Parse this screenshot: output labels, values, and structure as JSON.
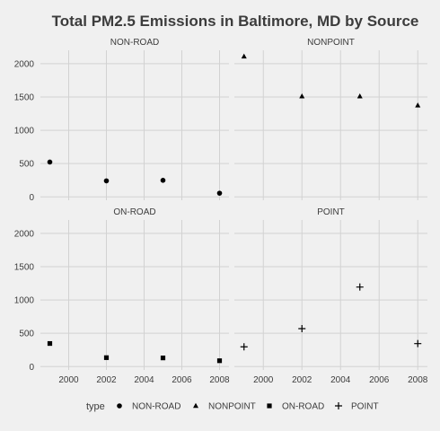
{
  "chart_data": {
    "type": "scatter",
    "title": "Total PM2.5 Emissions in Baltimore, MD by Source",
    "xlabel": "",
    "ylabel": "",
    "x": [
      1999,
      2002,
      2005,
      2008
    ],
    "xlim": [
      1998.5,
      2008.5
    ],
    "ylim": [
      -50,
      2200
    ],
    "x_ticks": [
      "2000",
      "2002",
      "2004",
      "2006",
      "2008"
    ],
    "y_ticks": [
      "0",
      "500",
      "1000",
      "1500",
      "2000"
    ],
    "grid": true,
    "facets": [
      {
        "name": "NON-ROAD",
        "shape": "circle",
        "values": [
          522.94,
          240.85,
          248.93,
          55.82
        ]
      },
      {
        "name": "NONPOINT",
        "shape": "triangle",
        "values": [
          2107.63,
          1509.5,
          1509.5,
          1373.21
        ]
      },
      {
        "name": "ON-ROAD",
        "shape": "square",
        "values": [
          346.82,
          134.31,
          130.43,
          88.28
        ]
      },
      {
        "name": "POINT",
        "shape": "plus",
        "values": [
          296.8,
          569.26,
          1193.8,
          344.98
        ]
      }
    ],
    "legend": {
      "title": "type",
      "placement": "bottom",
      "entries": [
        "NON-ROAD",
        "NONPOINT",
        "ON-ROAD",
        "POINT"
      ]
    }
  }
}
